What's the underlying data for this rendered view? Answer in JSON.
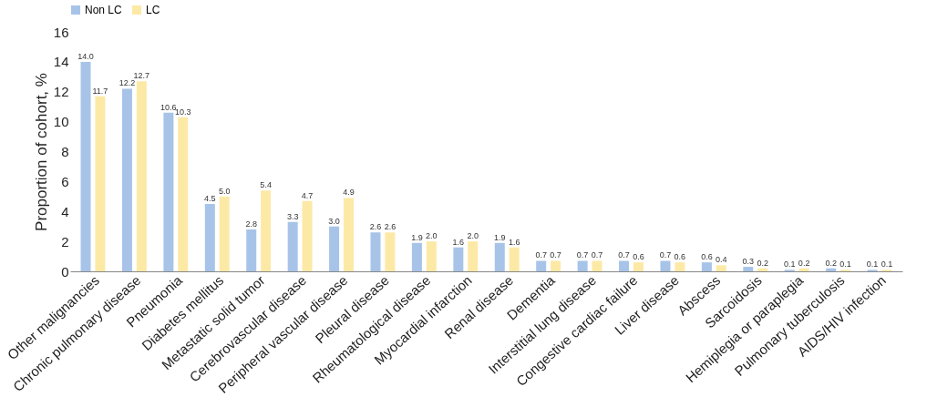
{
  "chart_data": {
    "type": "bar",
    "ylabel": "Proportion of cohort, %",
    "categories": [
      "Other malignancies",
      "Chronic pulmonary disease",
      "Pneumonia",
      "Diabetes mellitus",
      "Metastatic solid tumor",
      "Cerebrovascular disease",
      "Peripheral vascular disease",
      "Pleural disease",
      "Rheumatological disease",
      "Myocardial infarction",
      "Renal disease",
      "Dementia",
      "Interstitial lung disease",
      "Congestive cardiac failure",
      "Liver disease",
      "Abscess",
      "Sarcoidosis",
      "Hemiplegia or paraplegia",
      "Pulmonary tuberculosis",
      "AIDS/HIV infection"
    ],
    "series": [
      {
        "name": "Non LC",
        "color": "#a7c4e8",
        "values": [
          14.0,
          12.2,
          10.6,
          4.5,
          2.8,
          3.3,
          3.0,
          2.6,
          1.9,
          1.6,
          1.9,
          0.7,
          0.7,
          0.7,
          0.7,
          0.6,
          0.3,
          0.1,
          0.2,
          0.1
        ],
        "value_labels": [
          "14.0",
          "12.2",
          "10.6",
          "4.5",
          "2.8",
          "3.3",
          "3.0",
          "2.6",
          "1.9",
          "1.6",
          "1.9",
          "0.7",
          "0.7",
          "0.7",
          "0.7",
          "0.6",
          "0.3",
          "0.1",
          "0.2",
          "0.1"
        ]
      },
      {
        "name": "LC",
        "color": "#fde9a6",
        "values": [
          11.7,
          12.7,
          10.3,
          5.0,
          5.4,
          4.7,
          4.9,
          2.6,
          2.0,
          2.0,
          1.6,
          0.7,
          0.7,
          0.6,
          0.6,
          0.4,
          0.2,
          0.2,
          0.1,
          0.1
        ],
        "value_labels": [
          "11.7",
          "12.7",
          "10.3",
          "5.0",
          "5.4",
          "4.7",
          "4.9",
          "2.6",
          "2.0",
          "2.0",
          "1.6",
          "0.7",
          "0.7",
          "0.6",
          "0.6",
          "0.4",
          "0.2",
          "0.2",
          "0.1",
          "0.1"
        ]
      }
    ],
    "ylim": [
      0,
      16
    ],
    "yticks": [
      0,
      2,
      4,
      6,
      8,
      10,
      12,
      14,
      16
    ],
    "grid": false,
    "legend": "top"
  }
}
